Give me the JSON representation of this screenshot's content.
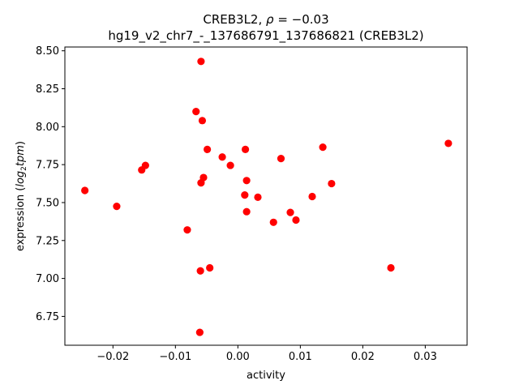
{
  "chart_data": {
    "type": "scatter",
    "title": "CREB3L2, ρ = −0.03",
    "title_line1_prefix": "CREB3L2, ",
    "title_line1_rho": "ρ",
    "title_line1_suffix": " = −0.03",
    "subtitle": "hg19_v2_chr7_-_137686791_137686821 (CREB3L2)",
    "xlabel": "activity",
    "ylabel_prefix": "expression (",
    "ylabel_math": "log",
    "ylabel_sub": "2",
    "ylabel_math2": "tpm",
    "ylabel_suffix": ")",
    "xlim": [
      -0.0277,
      0.0367
    ],
    "ylim": [
      6.56,
      8.525
    ],
    "xticks": [
      -0.02,
      -0.01,
      0.0,
      0.01,
      0.02,
      0.03
    ],
    "xtick_labels": [
      "−0.02",
      "−0.01",
      "0.00",
      "0.01",
      "0.02",
      "0.03"
    ],
    "yticks": [
      6.75,
      7.0,
      7.25,
      7.5,
      7.75,
      8.0,
      8.25,
      8.5
    ],
    "ytick_labels": [
      "6.75",
      "7.00",
      "7.25",
      "7.50",
      "7.75",
      "8.00",
      "8.25",
      "8.50"
    ],
    "marker_color": "#ff0000",
    "grid": false,
    "points": [
      {
        "x": -0.0245,
        "y": 7.58
      },
      {
        "x": -0.0194,
        "y": 7.475
      },
      {
        "x": -0.0154,
        "y": 7.715
      },
      {
        "x": -0.0148,
        "y": 7.745
      },
      {
        "x": -0.0081,
        "y": 7.32
      },
      {
        "x": -0.0067,
        "y": 8.1
      },
      {
        "x": -0.0059,
        "y": 8.43
      },
      {
        "x": -0.0057,
        "y": 8.04
      },
      {
        "x": -0.0055,
        "y": 7.665
      },
      {
        "x": -0.0059,
        "y": 7.63
      },
      {
        "x": -0.0049,
        "y": 7.85
      },
      {
        "x": -0.0045,
        "y": 7.07
      },
      {
        "x": -0.006,
        "y": 7.05
      },
      {
        "x": -0.0061,
        "y": 6.645
      },
      {
        "x": -0.0025,
        "y": 7.8
      },
      {
        "x": -0.0012,
        "y": 7.745
      },
      {
        "x": 0.0012,
        "y": 7.85
      },
      {
        "x": 0.0011,
        "y": 7.55
      },
      {
        "x": 0.0014,
        "y": 7.645
      },
      {
        "x": 0.0014,
        "y": 7.44
      },
      {
        "x": 0.0032,
        "y": 7.535
      },
      {
        "x": 0.0057,
        "y": 7.37
      },
      {
        "x": 0.0069,
        "y": 7.79
      },
      {
        "x": 0.0084,
        "y": 7.435
      },
      {
        "x": 0.0093,
        "y": 7.385
      },
      {
        "x": 0.0119,
        "y": 7.54
      },
      {
        "x": 0.0136,
        "y": 7.865
      },
      {
        "x": 0.015,
        "y": 7.625
      },
      {
        "x": 0.0245,
        "y": 7.07
      },
      {
        "x": 0.0337,
        "y": 7.89
      }
    ]
  }
}
